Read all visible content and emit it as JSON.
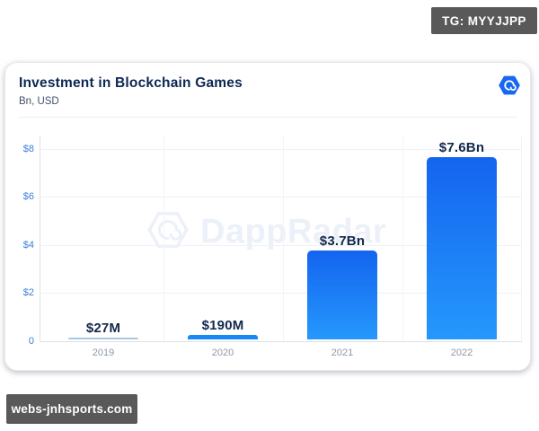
{
  "overlays": {
    "tg_badge": "TG: MYYJJPP",
    "site_badge": "webs-jnhsports.com",
    "badge_bg": "#595959"
  },
  "header": {
    "title": "Investment in Blockchain Games",
    "subtitle": "Bn, USD"
  },
  "watermark": {
    "text": "DappRadar"
  },
  "icons": {
    "logo": "dappradar-hexagon-spiral",
    "logo_color": "#1668f2"
  },
  "chart_data": {
    "type": "bar",
    "title": "Investment in Blockchain Games",
    "unit": "Bn, USD",
    "categories": [
      "2019",
      "2020",
      "2021",
      "2022"
    ],
    "values": [
      0.027,
      0.19,
      3.7,
      7.6
    ],
    "value_labels": [
      "$27M",
      "$190M",
      "$3.7Bn",
      "$7.6Bn"
    ],
    "y_ticks": [
      "$8",
      "$6",
      "$4",
      "$2",
      "0"
    ],
    "ylim": [
      0,
      8
    ],
    "grid": true,
    "legend": false,
    "colors": {
      "bar_gradient_top": "#1464ef",
      "bar_gradient_bottom": "#2598fc",
      "bar_2020": "#1a87f7",
      "bar_2019": "#abc8e2",
      "y_tick_text": "#3f7ed8",
      "x_tick_text": "#8f99ab",
      "value_label_text": "#12284c"
    }
  }
}
